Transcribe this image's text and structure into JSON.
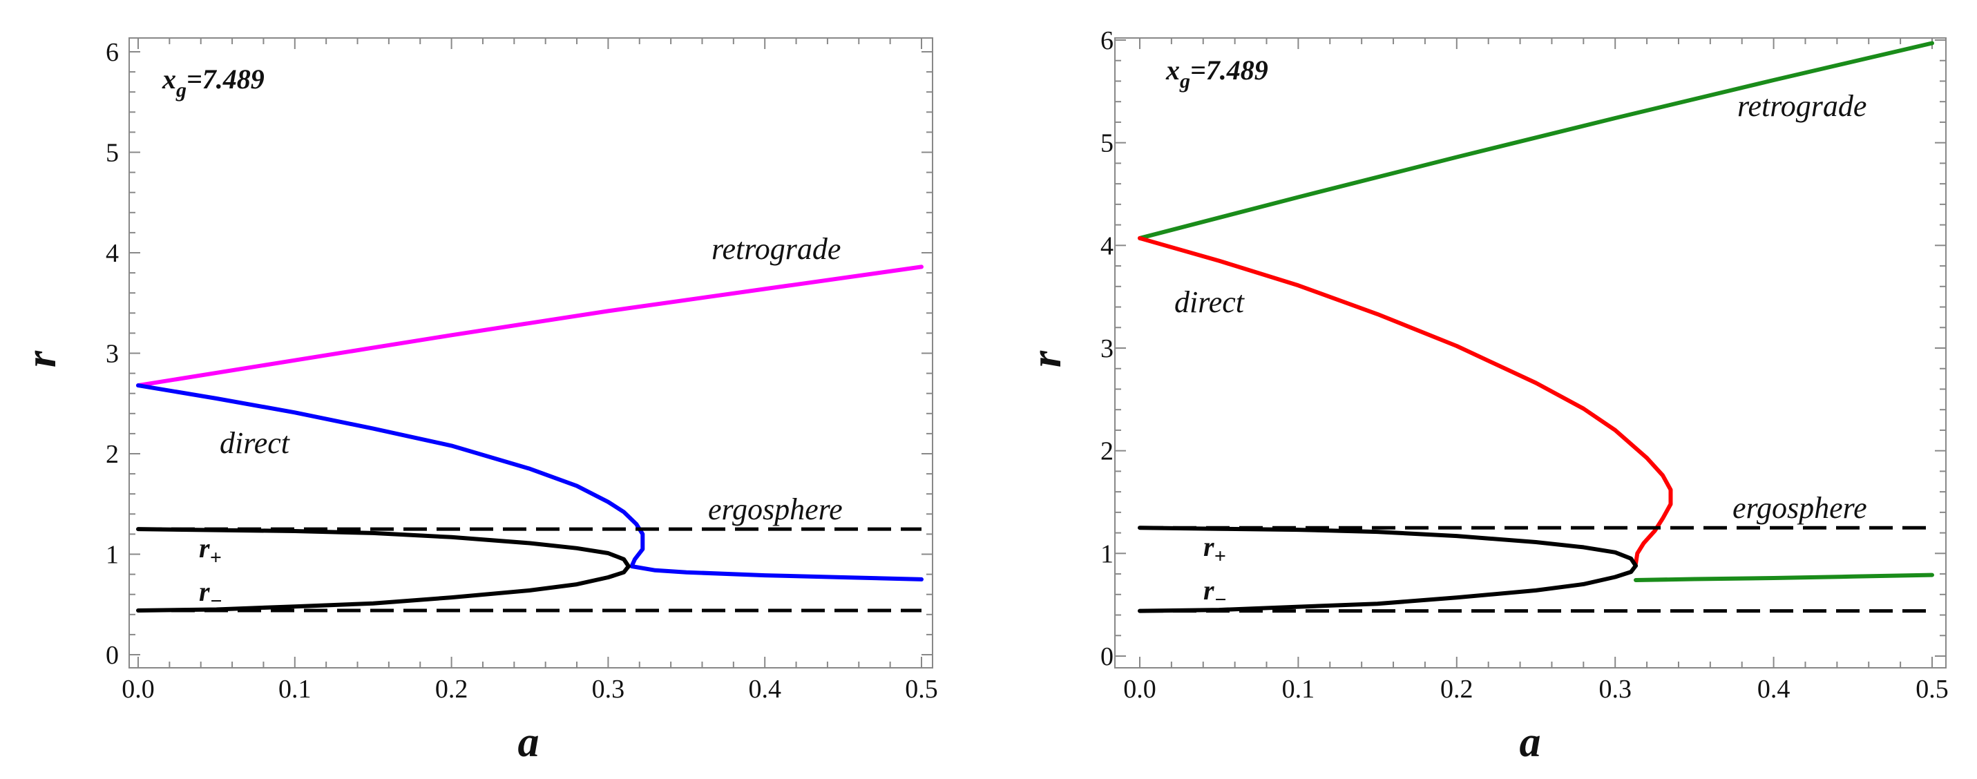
{
  "chart_data": [
    {
      "type": "line",
      "xlabel": "a",
      "ylabel": "r",
      "xlim": [
        0,
        0.5
      ],
      "ylim": [
        0,
        6
      ],
      "xticks": [
        "0.0",
        "0.1",
        "0.2",
        "0.3",
        "0.4",
        "0.5"
      ],
      "yticks": [
        "0",
        "1",
        "2",
        "3",
        "4",
        "5",
        "6"
      ],
      "param_label": {
        "main": "x",
        "sub": "g",
        "rest": "=7.489"
      },
      "annotations": {
        "retrograde": "retrograde",
        "direct": "direct",
        "ergosphere": "ergosphere",
        "r_plus": "r",
        "r_plus_sub": "+",
        "r_minus": "r",
        "r_minus_sub": "−"
      },
      "series": [
        {
          "name": "retrograde",
          "color": "#ff00ff",
          "dash": false,
          "points": [
            [
              0,
              2.68
            ],
            [
              0.1,
              2.93
            ],
            [
              0.2,
              3.18
            ],
            [
              0.3,
              3.42
            ],
            [
              0.4,
              3.64
            ],
            [
              0.5,
              3.86
            ]
          ]
        },
        {
          "name": "direct",
          "color": "#0000ff",
          "dash": false,
          "points": [
            [
              0,
              2.68
            ],
            [
              0.05,
              2.55
            ],
            [
              0.1,
              2.41
            ],
            [
              0.15,
              2.25
            ],
            [
              0.2,
              2.08
            ],
            [
              0.25,
              1.85
            ],
            [
              0.28,
              1.68
            ],
            [
              0.3,
              1.52
            ],
            [
              0.31,
              1.42
            ],
            [
              0.318,
              1.3
            ],
            [
              0.322,
              1.2
            ],
            [
              0.322,
              1.05
            ],
            [
              0.317,
              0.95
            ],
            [
              0.315,
              0.88
            ],
            [
              0.33,
              0.84
            ],
            [
              0.35,
              0.82
            ],
            [
              0.4,
              0.79
            ],
            [
              0.45,
              0.77
            ],
            [
              0.5,
              0.75
            ]
          ]
        },
        {
          "name": "r+",
          "color": "#000000",
          "dash": false,
          "points": [
            [
              0,
              1.25
            ],
            [
              0.05,
              1.24
            ],
            [
              0.1,
              1.23
            ],
            [
              0.15,
              1.21
            ],
            [
              0.2,
              1.17
            ],
            [
              0.25,
              1.11
            ],
            [
              0.28,
              1.06
            ],
            [
              0.3,
              1.01
            ],
            [
              0.31,
              0.95
            ],
            [
              0.313,
              0.88
            ]
          ]
        },
        {
          "name": "r-",
          "color": "#000000",
          "dash": false,
          "points": [
            [
              0,
              0.44
            ],
            [
              0.05,
              0.45
            ],
            [
              0.1,
              0.48
            ],
            [
              0.15,
              0.51
            ],
            [
              0.2,
              0.57
            ],
            [
              0.25,
              0.64
            ],
            [
              0.28,
              0.7
            ],
            [
              0.3,
              0.77
            ],
            [
              0.31,
              0.82
            ],
            [
              0.313,
              0.88
            ]
          ]
        },
        {
          "name": "ergosphere-outer",
          "color": "#000000",
          "dash": true,
          "points": [
            [
              0,
              1.25
            ],
            [
              0.5,
              1.25
            ]
          ]
        },
        {
          "name": "ergosphere-inner",
          "color": "#000000",
          "dash": true,
          "points": [
            [
              0,
              0.44
            ],
            [
              0.5,
              0.44
            ]
          ]
        }
      ]
    },
    {
      "type": "line",
      "xlabel": "a",
      "ylabel": "r",
      "xlim": [
        0,
        0.5
      ],
      "ylim": [
        0,
        6
      ],
      "xticks": [
        "0.0",
        "0.1",
        "0.2",
        "0.3",
        "0.4",
        "0.5"
      ],
      "yticks": [
        "0",
        "1",
        "2",
        "3",
        "4",
        "5",
        "6"
      ],
      "param_label": {
        "main": "x",
        "sub": "g",
        "rest": "=7.489"
      },
      "annotations": {
        "retrograde": "retrograde",
        "direct": "direct",
        "ergosphere": "ergosphere",
        "r_plus": "r",
        "r_plus_sub": "+",
        "r_minus": "r",
        "r_minus_sub": "−"
      },
      "series": [
        {
          "name": "retrograde",
          "color": "#1a8c1a",
          "dash": false,
          "points": [
            [
              0,
              4.07
            ],
            [
              0.1,
              4.47
            ],
            [
              0.2,
              4.86
            ],
            [
              0.3,
              5.24
            ],
            [
              0.4,
              5.61
            ],
            [
              0.5,
              5.97
            ]
          ]
        },
        {
          "name": "direct",
          "color": "#ff0000",
          "dash": false,
          "points": [
            [
              0,
              4.07
            ],
            [
              0.05,
              3.85
            ],
            [
              0.1,
              3.61
            ],
            [
              0.15,
              3.33
            ],
            [
              0.2,
              3.02
            ],
            [
              0.25,
              2.66
            ],
            [
              0.28,
              2.41
            ],
            [
              0.3,
              2.2
            ],
            [
              0.32,
              1.93
            ],
            [
              0.33,
              1.76
            ],
            [
              0.335,
              1.62
            ],
            [
              0.335,
              1.48
            ],
            [
              0.33,
              1.34
            ],
            [
              0.325,
              1.22
            ],
            [
              0.318,
              1.1
            ],
            [
              0.314,
              1.0
            ],
            [
              0.313,
              0.9
            ]
          ]
        },
        {
          "name": "direct-inner",
          "color": "#1a8c1a",
          "dash": false,
          "points": [
            [
              0.313,
              0.74
            ],
            [
              0.35,
              0.75
            ],
            [
              0.4,
              0.76
            ],
            [
              0.45,
              0.775
            ],
            [
              0.5,
              0.79
            ]
          ]
        },
        {
          "name": "r+",
          "color": "#000000",
          "dash": false,
          "points": [
            [
              0,
              1.25
            ],
            [
              0.05,
              1.24
            ],
            [
              0.1,
              1.23
            ],
            [
              0.15,
              1.21
            ],
            [
              0.2,
              1.17
            ],
            [
              0.25,
              1.11
            ],
            [
              0.28,
              1.06
            ],
            [
              0.3,
              1.01
            ],
            [
              0.31,
              0.95
            ],
            [
              0.313,
              0.88
            ]
          ]
        },
        {
          "name": "r-",
          "color": "#000000",
          "dash": false,
          "points": [
            [
              0,
              0.44
            ],
            [
              0.05,
              0.45
            ],
            [
              0.1,
              0.48
            ],
            [
              0.15,
              0.51
            ],
            [
              0.2,
              0.57
            ],
            [
              0.25,
              0.64
            ],
            [
              0.28,
              0.7
            ],
            [
              0.3,
              0.77
            ],
            [
              0.31,
              0.82
            ],
            [
              0.313,
              0.88
            ]
          ]
        },
        {
          "name": "ergosphere-outer",
          "color": "#000000",
          "dash": true,
          "points": [
            [
              0,
              1.25
            ],
            [
              0.5,
              1.25
            ]
          ]
        },
        {
          "name": "ergosphere-inner",
          "color": "#000000",
          "dash": true,
          "points": [
            [
              0,
              0.44
            ],
            [
              0.5,
              0.44
            ]
          ]
        }
      ]
    }
  ]
}
